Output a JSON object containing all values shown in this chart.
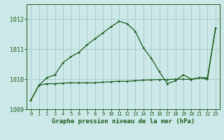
{
  "title": "Graphe pression niveau de la mer (hPa)",
  "bg_color": "#cce8e8",
  "grid_color": "#aacccc",
  "line_color": "#1a5c1a",
  "marker_color": "#1a5c1a",
  "xlim": [
    -0.5,
    23.5
  ],
  "ylim": [
    1009.0,
    1012.5
  ],
  "yticks": [
    1009,
    1010,
    1011,
    1012
  ],
  "xticks": [
    0,
    1,
    2,
    3,
    4,
    5,
    6,
    7,
    8,
    9,
    10,
    11,
    12,
    13,
    14,
    15,
    16,
    17,
    18,
    19,
    20,
    21,
    22,
    23
  ],
  "series1_y": [
    1009.3,
    1009.8,
    1009.85,
    1009.85,
    1009.87,
    1009.88,
    1009.88,
    1009.88,
    1009.88,
    1009.9,
    1009.92,
    1009.93,
    1009.93,
    1009.95,
    1009.97,
    1009.98,
    1009.99,
    1009.99,
    1010.0,
    1010.0,
    1009.99,
    1010.05,
    1010.05,
    1011.7
  ],
  "series2_y": [
    1009.3,
    1009.8,
    1010.05,
    1010.15,
    1010.55,
    1010.75,
    1010.9,
    1011.15,
    1011.35,
    1011.55,
    1011.75,
    1011.93,
    1011.85,
    1011.6,
    1011.05,
    1010.7,
    1010.25,
    1009.85,
    1009.95,
    1010.15,
    1010.0,
    1010.05,
    1010.0,
    1011.7
  ]
}
